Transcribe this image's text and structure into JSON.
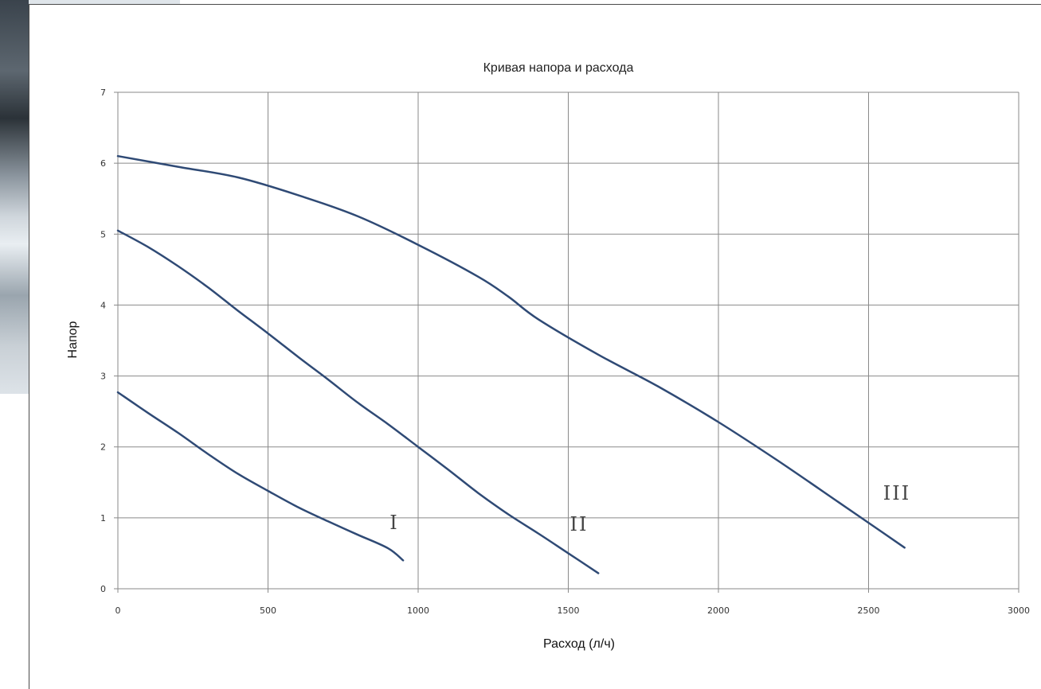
{
  "chart_data": {
    "type": "line",
    "title": "Кривая напора и расхода",
    "xlabel": "Расход (л/ч)",
    "ylabel": "Напор",
    "xlim": [
      0,
      3000
    ],
    "ylim": [
      0,
      7
    ],
    "x_ticks": [
      "0",
      "500",
      "1000",
      "1500",
      "2000",
      "2500",
      "3000"
    ],
    "y_ticks": [
      "0",
      "1",
      "2",
      "3",
      "4",
      "5",
      "6",
      "7"
    ],
    "grid": true,
    "series": [
      {
        "name": "I",
        "color": "#2f4a75",
        "x": [
          0,
          100,
          200,
          300,
          400,
          500,
          600,
          700,
          800,
          900,
          950
        ],
        "y": [
          2.77,
          2.48,
          2.2,
          1.9,
          1.62,
          1.38,
          1.15,
          0.95,
          0.76,
          0.57,
          0.4
        ]
      },
      {
        "name": "II",
        "color": "#2f4a75",
        "x": [
          0,
          100,
          200,
          300,
          400,
          500,
          600,
          700,
          800,
          900,
          1000,
          1100,
          1200,
          1300,
          1400,
          1500,
          1600
        ],
        "y": [
          5.05,
          4.82,
          4.55,
          4.25,
          3.92,
          3.6,
          3.27,
          2.95,
          2.62,
          2.32,
          2.0,
          1.68,
          1.35,
          1.05,
          0.78,
          0.5,
          0.22
        ]
      },
      {
        "name": "III",
        "color": "#2f4a75",
        "x": [
          0,
          200,
          400,
          600,
          800,
          1000,
          1200,
          1300,
          1400,
          1600,
          1800,
          2000,
          2200,
          2400,
          2500,
          2620
        ],
        "y": [
          6.1,
          5.95,
          5.8,
          5.55,
          5.25,
          4.85,
          4.4,
          4.12,
          3.8,
          3.3,
          2.85,
          2.35,
          1.8,
          1.22,
          0.93,
          0.58
        ]
      }
    ]
  }
}
